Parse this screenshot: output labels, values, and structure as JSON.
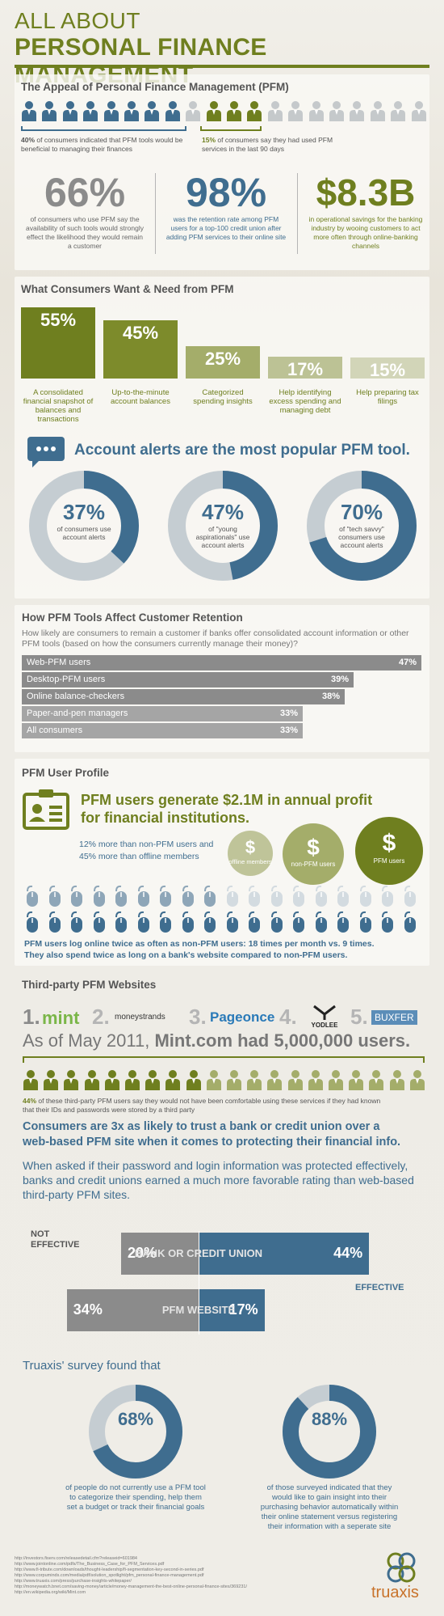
{
  "header": {
    "line1": "ALL ABOUT",
    "line2": "PERSONAL FINANCE MANAGEMENT"
  },
  "appeal": {
    "title": "The Appeal of Personal Finance Management (PFM)",
    "left_pct": "40%",
    "left_text": " of consumers indicated that PFM tools would be beneficial to managing their finances",
    "right_pct": "15%",
    "right_text": " of consumers say they had used PFM services in the last 90 days",
    "people_total": 20,
    "people_blue": 8,
    "people_green": 3,
    "stats": [
      {
        "value": "66%",
        "text": "of consumers who use PFM say the availability of such tools would strongly effect the likelihood they would remain a customer",
        "color": "#8b8b8b"
      },
      {
        "value": "98%",
        "text": "was the retention rate among PFM users for a top-100 credit union after adding PFM services to their online site",
        "color": "#3f6d8f"
      },
      {
        "value": "$8.3B",
        "text": "in operational savings for the banking industry by wooing customers to act more often through online-banking channels",
        "color": "#6f7f1f"
      }
    ]
  },
  "wants": {
    "title": "What Consumers Want & Need from PFM",
    "bars": [
      {
        "pct": "55%",
        "label": "A consolidated financial snapshot of balances and transactions",
        "level": 55,
        "color": "#6f7f1f"
      },
      {
        "pct": "45%",
        "label": "Up-to-the-minute account balances",
        "level": 45,
        "color": "#7d8b2b"
      },
      {
        "pct": "25%",
        "label": "Categorized spending insights",
        "level": 25,
        "color": "#a4ad6a"
      },
      {
        "pct": "17%",
        "label": "Help identifying excess spending and managing debt",
        "level": 17,
        "color": "#bcc295"
      },
      {
        "pct": "15%",
        "label": "Help preparing tax filings",
        "level": 15,
        "color": "#d2d5b8"
      }
    ]
  },
  "alerts": {
    "heading": "Account alerts are the most popular PFM tool.",
    "donuts": [
      {
        "pct": "37%",
        "text": "of consumers use account alerts",
        "value": 37
      },
      {
        "pct": "47%",
        "text": "of \"young aspirationals\" use account alerts",
        "value": 47
      },
      {
        "pct": "70%",
        "text": "of \"tech savvy\" consumers use account alerts",
        "value": 70
      }
    ]
  },
  "retention": {
    "title": "How PFM Tools Affect Customer Retention",
    "question": "How likely are consumers to remain a customer if banks offer consolidated account information or other PFM tools (based on how the consumers currently manage their money)?",
    "rows": [
      {
        "label": "Web-PFM users",
        "value": "47%",
        "level": 47
      },
      {
        "label": "Desktop-PFM users",
        "value": "39%",
        "level": 39
      },
      {
        "label": "Online balance-checkers",
        "value": "38%",
        "level": 38
      },
      {
        "label": "Paper-and-pen managers",
        "value": "33%",
        "level": 33
      },
      {
        "label": "All consumers",
        "value": "33%",
        "level": 33
      }
    ]
  },
  "profile": {
    "title": "PFM User Profile",
    "headline1": "PFM users generate $2.1M in annual profit",
    "headline2": "for financial institutions.",
    "sub1": "12% more than non-PFM users and",
    "sub2": "45% more than offline members",
    "coins": [
      {
        "symbol": "$",
        "label": "offline members"
      },
      {
        "symbol": "$",
        "label": "non-PFM users"
      },
      {
        "symbol": "$",
        "label": "PFM users"
      }
    ],
    "mice_row1": 18,
    "mice_row2": 18,
    "mice_row1_active": 9,
    "caption1": "PFM users log online twice as often as non-PFM users: 18 times per month vs. 9 times.",
    "caption2": "They also spend twice as long on a bank's website compared to non-PFM users."
  },
  "thirdparty": {
    "title": "Third-party PFM Websites",
    "sites": [
      {
        "rank": "1.",
        "name": "mint"
      },
      {
        "rank": "2.",
        "name": "moneystrands"
      },
      {
        "rank": "3.",
        "name": "Pageonce"
      },
      {
        "rank": "4.",
        "name": "YODLEE"
      },
      {
        "rank": "5.",
        "name": "BUXFER"
      }
    ],
    "asof_pre": "As of May 2011, ",
    "asof_bold": "Mint.com had 5,000,000 users.",
    "people_total": 20,
    "people_dark": 9,
    "people_pct": "44%",
    "people_text": " of these third-party PFM users say they would not have been comfortable using these services if they had known that their IDs and passwords were stored by a third party",
    "trust1": "Consumers are 3x as likely to trust a bank or credit union over a",
    "trust2": "web-based PFM site when it comes to protecting their financial info.",
    "asked": "When asked if their password and login information was protected effectively, banks and credit unions earned a much more favorable rating than web-based third-party PFM sites."
  },
  "comparison": {
    "not_effective": "NOT EFFECTIVE",
    "effective": "EFFECTIVE",
    "bank": {
      "label": "BANK OR CREDIT UNION",
      "not": "20%",
      "eff": "44%",
      "not_v": 20,
      "eff_v": 44
    },
    "web": {
      "label": "PFM WEBSITE",
      "not": "34%",
      "eff": "17%",
      "not_v": 34,
      "eff_v": 17
    }
  },
  "survey": {
    "title": "Truaxis' survey found that",
    "donuts": [
      {
        "pct": "68%",
        "value": 68,
        "text": "of people do not currently use a PFM tool to categorize their spending, help them set a budget or track their financial goals"
      },
      {
        "pct": "88%",
        "value": 88,
        "text": "of those surveyed indicated that they would like to gain insight into their purchasing behavior automatically within their online statement versus registering their information with a seperate site"
      }
    ]
  },
  "footer": {
    "sources": [
      "http://investors.fiserv.com/releasedetail.cfm?releaseid=601984",
      "http://www.jointonline.com/pdfs/The_Business_Case_for_PFM_Services.pdf",
      "http://www.fi-tribute.com/downloads/thought-leadership/fi-segmentation-key-second-in-series.pdf",
      "http://www.corpuminds.com/media/pdf/solution_spotlight/pfm_personal-finance-management.pdf",
      "http://www.truaxis.com/press/purchase-insights-whitepaper/",
      "http://moneywatch.bnet.com/saving-money/article/money-management-the-best-online-personal-finance-sites/369231/",
      "http://en.wikipedia.org/wiki/Mint.com"
    ],
    "logo": "truaxis"
  },
  "colors": {
    "green": "#6f7f1f",
    "blue": "#3f6d8f",
    "grey": "#8b8b8b",
    "light_grey": "#c5c9cb"
  }
}
